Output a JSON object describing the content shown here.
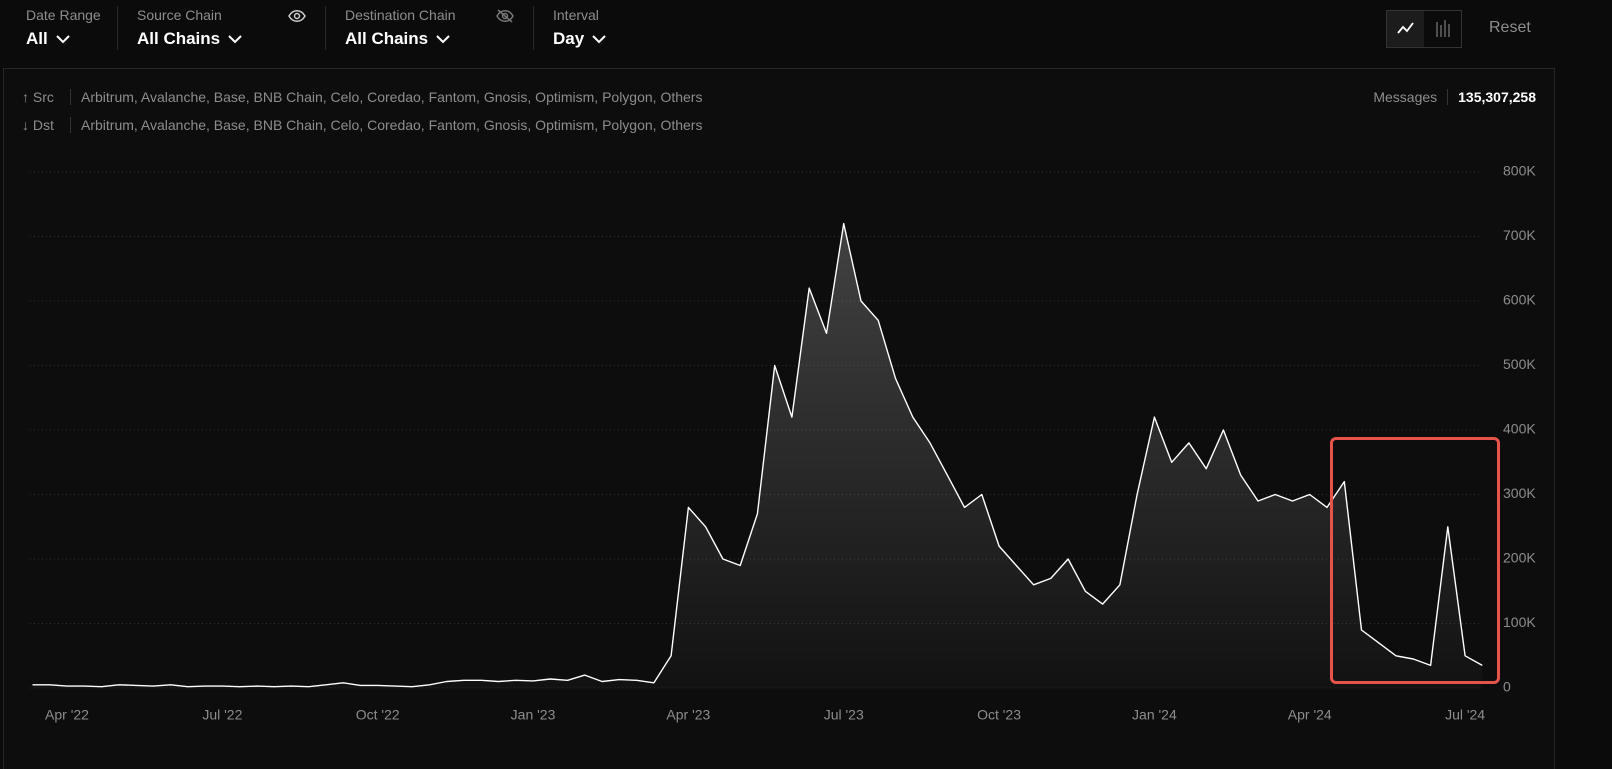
{
  "filters": [
    {
      "label": "Date Range",
      "value": "All"
    },
    {
      "label": "Source Chain",
      "value": "All Chains"
    },
    {
      "label": "Destination Chain",
      "value": "All Chains"
    },
    {
      "label": "Interval",
      "value": "Day"
    }
  ],
  "reset": "Reset",
  "routes": [
    {
      "label": "↑ Src",
      "chains": "Arbitrum, Avalanche, Base, BNB Chain, Celo, Coredao, Fantom, Gnosis, Optimism, Polygon, Others"
    },
    {
      "label": "↓ Dst",
      "chains": "Arbitrum, Avalanche, Base, BNB Chain, Celo, Coredao, Fantom, Gnosis, Optimism, Polygon, Others"
    }
  ],
  "summary": {
    "label": "Messages",
    "value": "135,307,258"
  },
  "chart_data": {
    "type": "area",
    "color": "#ffffff",
    "grid": true,
    "categories": [
      null,
      null,
      "Apr '22",
      null,
      null,
      null,
      null,
      null,
      null,
      null,
      null,
      "Jul '22",
      null,
      null,
      null,
      null,
      null,
      null,
      null,
      null,
      "Oct '22",
      null,
      null,
      null,
      null,
      null,
      null,
      null,
      null,
      "Jan '23",
      null,
      null,
      null,
      null,
      null,
      null,
      null,
      null,
      "Apr '23",
      null,
      null,
      null,
      null,
      null,
      null,
      null,
      null,
      "Jul '23",
      null,
      null,
      null,
      null,
      null,
      null,
      null,
      null,
      "Oct '23",
      null,
      null,
      null,
      null,
      null,
      null,
      null,
      null,
      "Jan '24",
      null,
      null,
      null,
      null,
      null,
      null,
      null,
      null,
      "Apr '24",
      null,
      null,
      null,
      null,
      null,
      null,
      null,
      null,
      "Jul '24",
      null
    ],
    "values": [
      5000,
      5000,
      3000,
      3000,
      2000,
      5000,
      4000,
      3000,
      5000,
      2000,
      3000,
      3000,
      2000,
      3000,
      2000,
      3000,
      2000,
      5000,
      8000,
      4000,
      4000,
      3000,
      2000,
      5000,
      10000,
      12000,
      12000,
      10000,
      12000,
      11000,
      14000,
      12000,
      20000,
      10000,
      13000,
      12000,
      8000,
      50000,
      280000,
      250000,
      200000,
      190000,
      270000,
      500000,
      420000,
      620000,
      550000,
      720000,
      600000,
      570000,
      480000,
      420000,
      380000,
      330000,
      280000,
      300000,
      220000,
      190000,
      160000,
      170000,
      200000,
      150000,
      130000,
      160000,
      300000,
      420000,
      350000,
      380000,
      340000,
      400000,
      330000,
      290000,
      300000,
      290000,
      300000,
      280000,
      320000,
      90000,
      70000,
      50000,
      45000,
      35000,
      250000,
      50000,
      35000
    ],
    "ylim": [
      0,
      800000
    ],
    "yticks": [
      0,
      {
        "value": 100000,
        "label": "100K"
      },
      {
        "value": 200000,
        "label": "200K"
      },
      {
        "value": 300000,
        "label": "300K"
      },
      {
        "value": 400000,
        "label": "400K"
      },
      {
        "value": 500000,
        "label": "500K"
      },
      {
        "value": 600000,
        "label": "600K"
      },
      {
        "value": 700000,
        "label": "700K"
      },
      {
        "value": 800000,
        "label": "800K"
      }
    ]
  }
}
